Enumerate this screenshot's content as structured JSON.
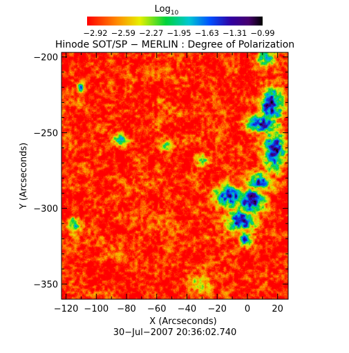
{
  "chart_data": {
    "type": "heatmap",
    "title": "Hinode SOT/SP − MERLIN : Degree of Polarization",
    "xlabel": "X (Arcseconds)",
    "ylabel": "Y (Arcseconds)",
    "timestamp": "30−Jul−2007 20:36:02.740",
    "xlim": [
      -123,
      27
    ],
    "ylim": [
      -360,
      -197
    ],
    "x_ticks": [
      -120,
      -100,
      -80,
      -60,
      -40,
      -20,
      0,
      20
    ],
    "x_tick_labels": [
      "−120",
      "−100",
      "−80",
      "−60",
      "−40",
      "−20",
      "0",
      "20"
    ],
    "y_ticks": [
      -200,
      -250,
      -300,
      -350
    ],
    "y_tick_labels": [
      "−200",
      "−250",
      "−300",
      "−350"
    ],
    "colorbar": {
      "label": "Log",
      "label_subscript": "10",
      "ticks": [
        -2.92,
        -2.59,
        -2.27,
        -1.95,
        -1.63,
        -1.31,
        -0.99
      ],
      "tick_labels": [
        "−2.92",
        "−2.59",
        "−2.27",
        "−1.95",
        "−1.63",
        "−1.31",
        "−0.99"
      ],
      "colormap": "rainbow (red → yellow → green → cyan → blue → purple → black)"
    },
    "image_field": {
      "background_value": -2.85,
      "high_polarization_regions": [
        {
          "x": 16,
          "y": -232,
          "sx": 5,
          "sy": 8,
          "value": -1.25
        },
        {
          "x": 10,
          "y": -244,
          "sx": 7,
          "sy": 4,
          "value": -1.35
        },
        {
          "x": 18,
          "y": -262,
          "sx": 5,
          "sy": 10,
          "value": -1.45
        },
        {
          "x": 2,
          "y": -295,
          "sx": 6,
          "sy": 6,
          "value": -1.25
        },
        {
          "x": -12,
          "y": -292,
          "sx": 7,
          "sy": 5,
          "value": -1.4
        },
        {
          "x": 8,
          "y": -282,
          "sx": 5,
          "sy": 4,
          "value": -1.45
        },
        {
          "x": -4,
          "y": -308,
          "sx": 6,
          "sy": 5,
          "value": -1.4
        },
        {
          "x": -2,
          "y": -320,
          "sx": 3,
          "sy": 4,
          "value": -1.6
        },
        {
          "x": 12,
          "y": -200,
          "sx": 4,
          "sy": 4,
          "value": -1.8
        },
        {
          "x": -110,
          "y": -220,
          "sx": 2,
          "sy": 2,
          "value": -1.8
        },
        {
          "x": -84,
          "y": -255,
          "sx": 3,
          "sy": 3,
          "value": -1.9
        },
        {
          "x": -115,
          "y": -310,
          "sx": 3,
          "sy": 4,
          "value": -1.9
        },
        {
          "x": -32,
          "y": -350,
          "sx": 4,
          "sy": 3,
          "value": -2.0
        },
        {
          "x": -30,
          "y": -268,
          "sx": 3,
          "sy": 3,
          "value": -2.0
        },
        {
          "x": -55,
          "y": -258,
          "sx": 3,
          "sy": 2,
          "value": -2.1
        }
      ]
    }
  }
}
